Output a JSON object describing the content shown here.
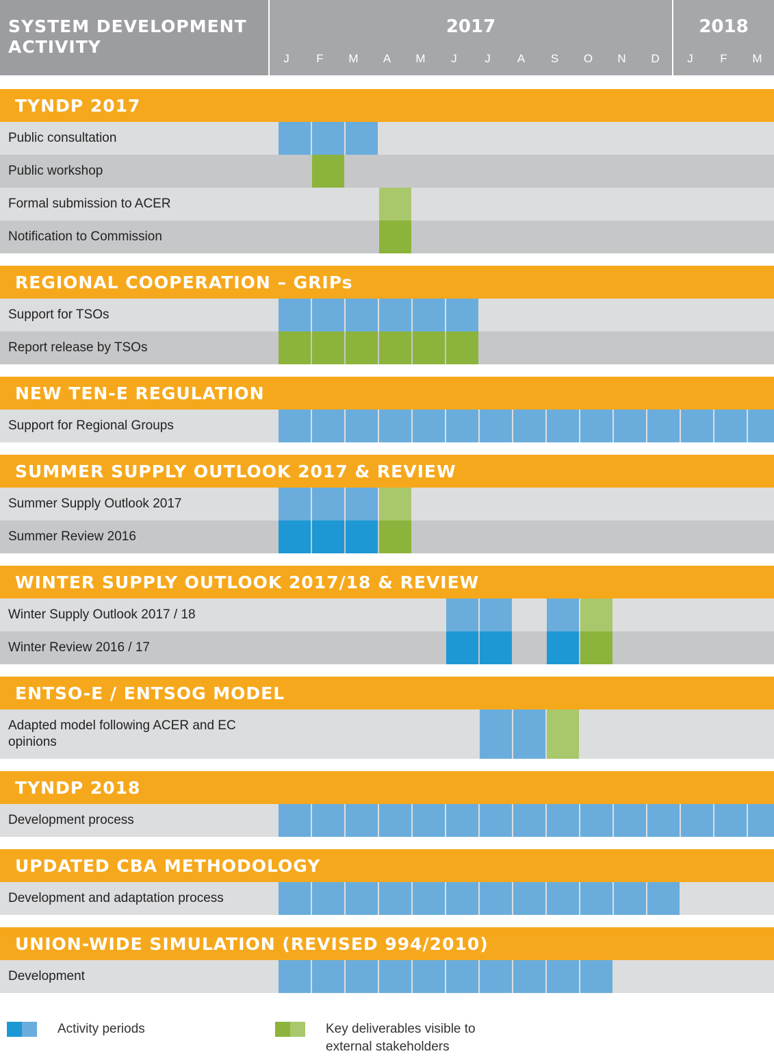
{
  "header": {
    "title": "SYSTEM DEVELOPMENT ACTIVITY",
    "years": [
      {
        "label": "2017",
        "months": [
          "J",
          "F",
          "M",
          "A",
          "M",
          "J",
          "J",
          "A",
          "S",
          "O",
          "N",
          "D"
        ]
      },
      {
        "label": "2018",
        "months": [
          "J",
          "F",
          "M"
        ]
      }
    ]
  },
  "colors": {
    "b": "#6aaddc",
    "B": "#1e98d4",
    "g": "#8cb43c",
    "G": "#a9c76b"
  },
  "sections": [
    {
      "title": "TYNDP 2017",
      "rows": [
        {
          "label": "Public consultation",
          "cells": [
            "b",
            "b",
            "b",
            null,
            null,
            null,
            null,
            null,
            null,
            null,
            null,
            null,
            null,
            null,
            null
          ]
        },
        {
          "label": "Public workshop",
          "cells": [
            null,
            "g",
            null,
            null,
            null,
            null,
            null,
            null,
            null,
            null,
            null,
            null,
            null,
            null,
            null
          ]
        },
        {
          "label": "Formal submission to ACER",
          "cells": [
            null,
            null,
            null,
            "G",
            null,
            null,
            null,
            null,
            null,
            null,
            null,
            null,
            null,
            null,
            null
          ]
        },
        {
          "label": "Notification to Commission",
          "cells": [
            null,
            null,
            null,
            "g",
            null,
            null,
            null,
            null,
            null,
            null,
            null,
            null,
            null,
            null,
            null
          ]
        }
      ]
    },
    {
      "title": "REGIONAL COOPERATION – GRIPs",
      "rows": [
        {
          "label": "Support for TSOs",
          "cells": [
            "b",
            "b",
            "b",
            "b",
            "b",
            "b",
            null,
            null,
            null,
            null,
            null,
            null,
            null,
            null,
            null
          ]
        },
        {
          "label": "Report release by TSOs",
          "cells": [
            "g",
            "g",
            "g",
            "g",
            "g",
            "g",
            null,
            null,
            null,
            null,
            null,
            null,
            null,
            null,
            null
          ]
        }
      ]
    },
    {
      "title": "NEW TEN-E REGULATION",
      "rows": [
        {
          "label": "Support for Regional Groups",
          "cells": [
            "b",
            "b",
            "b",
            "b",
            "b",
            "b",
            "b",
            "b",
            "b",
            "b",
            "b",
            "b",
            "b",
            "b",
            "b"
          ]
        }
      ]
    },
    {
      "title": "SUMMER SUPPLY OUTLOOK 2017 & REVIEW",
      "rows": [
        {
          "label": "Summer Supply Outlook 2017",
          "cells": [
            "b",
            "b",
            "b",
            "G",
            null,
            null,
            null,
            null,
            null,
            null,
            null,
            null,
            null,
            null,
            null
          ]
        },
        {
          "label": "Summer Review 2016",
          "cells": [
            "B",
            "B",
            "B",
            "g",
            null,
            null,
            null,
            null,
            null,
            null,
            null,
            null,
            null,
            null,
            null
          ]
        }
      ]
    },
    {
      "title": "WINTER SUPPLY OUTLOOK 2017/18 & REVIEW",
      "rows": [
        {
          "label": "Winter Supply Outlook 2017 / 18",
          "cells": [
            null,
            null,
            null,
            null,
            null,
            "b",
            "b",
            null,
            "b",
            "G",
            null,
            null,
            null,
            null,
            null
          ]
        },
        {
          "label": "Winter Review 2016 / 17",
          "cells": [
            null,
            null,
            null,
            null,
            null,
            "B",
            "B",
            null,
            "B",
            "g",
            null,
            null,
            null,
            null,
            null
          ]
        }
      ]
    },
    {
      "title": "ENTSO-E / ENTSOG MODEL",
      "rows": [
        {
          "label": "Adapted model following ACER and EC opinions",
          "cells": [
            null,
            null,
            null,
            null,
            null,
            null,
            "b",
            "b",
            "G",
            null,
            null,
            null,
            null,
            null,
            null
          ]
        }
      ]
    },
    {
      "title": "TYNDP 2018",
      "rows": [
        {
          "label": "Development process",
          "cells": [
            "b",
            "b",
            "b",
            "b",
            "b",
            "b",
            "b",
            "b",
            "b",
            "b",
            "b",
            "b",
            "b",
            "b",
            "b"
          ]
        }
      ]
    },
    {
      "title": "UPDATED CBA METHODOLOGY",
      "rows": [
        {
          "label": "Development and adaptation process",
          "cells": [
            "b",
            "b",
            "b",
            "b",
            "b",
            "b",
            "b",
            "b",
            "b",
            "b",
            "b",
            "b",
            null,
            null,
            null
          ]
        }
      ]
    },
    {
      "title": "UNION-WIDE SIMULATION (REVISED 994/2010)",
      "rows": [
        {
          "label": "Development",
          "cells": [
            "b",
            "b",
            "b",
            "b",
            "b",
            "b",
            "b",
            "b",
            "b",
            "b",
            null,
            null,
            null,
            null,
            null
          ]
        }
      ]
    }
  ],
  "legend": [
    {
      "label": "Activity periods",
      "colors": [
        "#1e98d4",
        "#6aaddc"
      ]
    },
    {
      "label": "Key deliverables visible to external stakeholders",
      "colors": [
        "#8cb43c",
        "#a9c76b"
      ]
    }
  ]
}
